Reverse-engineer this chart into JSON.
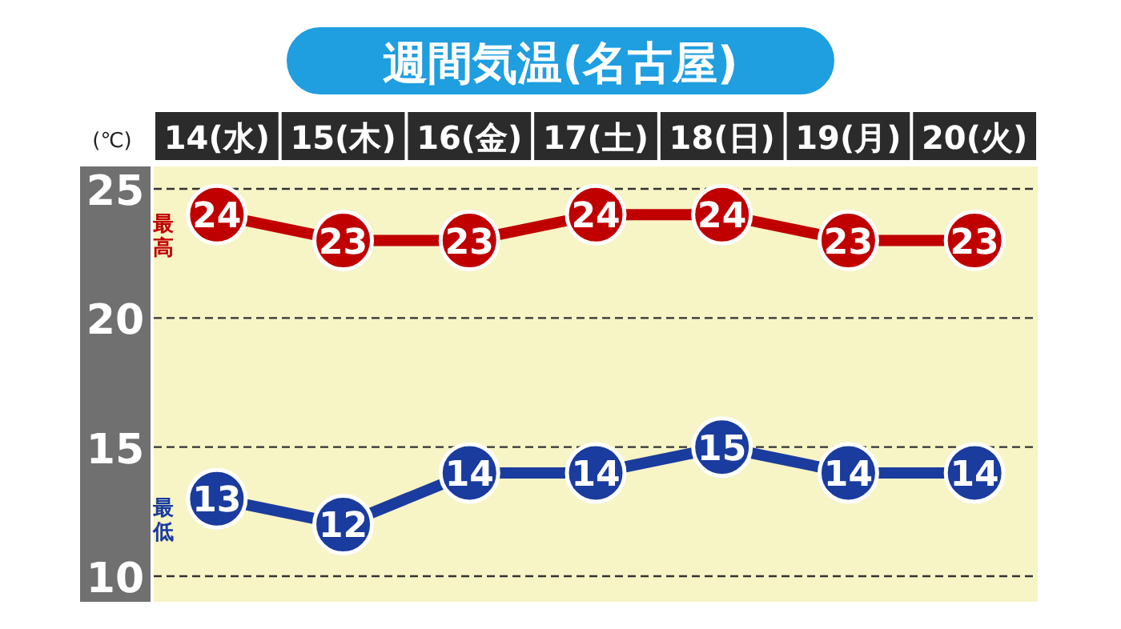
{
  "chart_data": {
    "type": "line",
    "title": "週間気温(名古屋)",
    "ylabel": "(℃)",
    "categories": [
      "14(水)",
      "15(木)",
      "16(金)",
      "17(土)",
      "18(日)",
      "19(月)",
      "20(火)"
    ],
    "series": [
      {
        "name": "最高",
        "color": "#c00000",
        "values": [
          24,
          23,
          23,
          24,
          24,
          23,
          23
        ]
      },
      {
        "name": "最低",
        "color": "#1a3c9e",
        "values": [
          13,
          12,
          14,
          14,
          15,
          14,
          14
        ]
      }
    ],
    "ylim": [
      10,
      25
    ],
    "yticks": [
      10,
      15,
      20,
      25
    ],
    "grid": "y",
    "marker": "circle",
    "line_style": "solid",
    "data_labels": true,
    "legend": false
  }
}
